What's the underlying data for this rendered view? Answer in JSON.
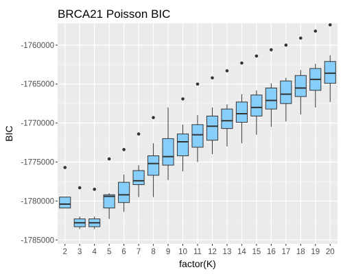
{
  "chart_data": {
    "type": "boxplot",
    "title": "BRCA21 Poisson BIC",
    "xlabel": "factor(K)",
    "ylabel": "BIC",
    "categories": [
      "2",
      "3",
      "4",
      "5",
      "6",
      "7",
      "8",
      "9",
      "10",
      "11",
      "12",
      "13",
      "14",
      "15",
      "16",
      "17",
      "18",
      "19",
      "20"
    ],
    "ylim": [
      -1785500,
      -1757200
    ],
    "yticks": [
      -1785000,
      -1780000,
      -1775000,
      -1770000,
      -1765000,
      -1760000
    ],
    "ytick_labels": [
      "-1785000",
      "-1780000",
      "-1775000",
      "-1770000",
      "-1765000",
      "-1760000"
    ],
    "box_fill": "#87CEFA",
    "panel_background": "#EBEBEB",
    "grid": true,
    "boxes": [
      {
        "k": "2",
        "whisker_low": -1780900,
        "q1": -1780900,
        "median": -1780400,
        "q3": -1779500,
        "whisker_high": -1779500,
        "outliers": [
          -1775700
        ]
      },
      {
        "k": "3",
        "whisker_low": -1783600,
        "q1": -1783300,
        "median": -1782800,
        "q3": -1782300,
        "whisker_high": -1782000,
        "outliers": [
          -1778300
        ]
      },
      {
        "k": "4",
        "whisker_low": -1783600,
        "q1": -1783300,
        "median": -1782800,
        "q3": -1782300,
        "whisker_high": -1782000,
        "outliers": [
          -1778500
        ]
      },
      {
        "k": "5",
        "whisker_low": -1782300,
        "q1": -1780900,
        "median": -1779400,
        "q3": -1779200,
        "whisker_high": -1779000,
        "outliers": [
          -1774600
        ]
      },
      {
        "k": "6",
        "whisker_low": -1781400,
        "q1": -1780200,
        "median": -1779200,
        "q3": -1777600,
        "whisker_high": -1776600,
        "outliers": [
          -1773400
        ]
      },
      {
        "k": "7",
        "whisker_low": -1779500,
        "q1": -1777900,
        "median": -1777400,
        "q3": -1776100,
        "whisker_high": -1775400,
        "outliers": [
          -1771400
        ]
      },
      {
        "k": "8",
        "whisker_low": -1779500,
        "q1": -1776700,
        "median": -1775200,
        "q3": -1774200,
        "whisker_high": -1772600,
        "outliers": [
          -1769300
        ]
      },
      {
        "k": "9",
        "whisker_low": -1777300,
        "q1": -1775400,
        "median": -1774300,
        "q3": -1772000,
        "whisker_high": -1768000,
        "outliers": []
      },
      {
        "k": "10",
        "whisker_low": -1776200,
        "q1": -1774200,
        "median": -1772400,
        "q3": -1771400,
        "whisker_high": -1770200,
        "outliers": [
          -1766900
        ]
      },
      {
        "k": "11",
        "whisker_low": -1775000,
        "q1": -1773100,
        "median": -1771500,
        "q3": -1770200,
        "whisker_high": -1769000,
        "outliers": [
          -1765000
        ]
      },
      {
        "k": "12",
        "whisker_low": -1774000,
        "q1": -1772200,
        "median": -1770400,
        "q3": -1769100,
        "whisker_high": -1768000,
        "outliers": [
          -1764200
        ]
      },
      {
        "k": "13",
        "whisker_low": -1773000,
        "q1": -1770700,
        "median": -1769700,
        "q3": -1768200,
        "whisker_high": -1767600,
        "outliers": [
          -1763300
        ]
      },
      {
        "k": "14",
        "whisker_low": -1772600,
        "q1": -1769900,
        "median": -1768800,
        "q3": -1767300,
        "whisker_high": -1766300,
        "outliers": [
          -1762300
        ]
      },
      {
        "k": "15",
        "whisker_low": -1771500,
        "q1": -1769100,
        "median": -1768000,
        "q3": -1766400,
        "whisker_high": -1765800,
        "outliers": [
          -1761400
        ]
      },
      {
        "k": "16",
        "whisker_low": -1770500,
        "q1": -1768200,
        "median": -1767100,
        "q3": -1765500,
        "whisker_high": -1764900,
        "outliers": [
          -1760600
        ]
      },
      {
        "k": "17",
        "whisker_low": -1769800,
        "q1": -1767500,
        "median": -1766300,
        "q3": -1764600,
        "whisker_high": -1764200,
        "outliers": [
          -1760000
        ]
      },
      {
        "k": "18",
        "whisker_low": -1768900,
        "q1": -1766600,
        "median": -1765500,
        "q3": -1763900,
        "whisker_high": -1763200,
        "outliers": [
          -1759100
        ]
      },
      {
        "k": "19",
        "whisker_low": -1768000,
        "q1": -1765800,
        "median": -1764400,
        "q3": -1763000,
        "whisker_high": -1762400,
        "outliers": [
          -1758200
        ]
      },
      {
        "k": "20",
        "whisker_low": -1767300,
        "q1": -1764900,
        "median": -1763600,
        "q3": -1762100,
        "whisker_high": -1761300,
        "outliers": [
          -1757400
        ]
      }
    ]
  }
}
